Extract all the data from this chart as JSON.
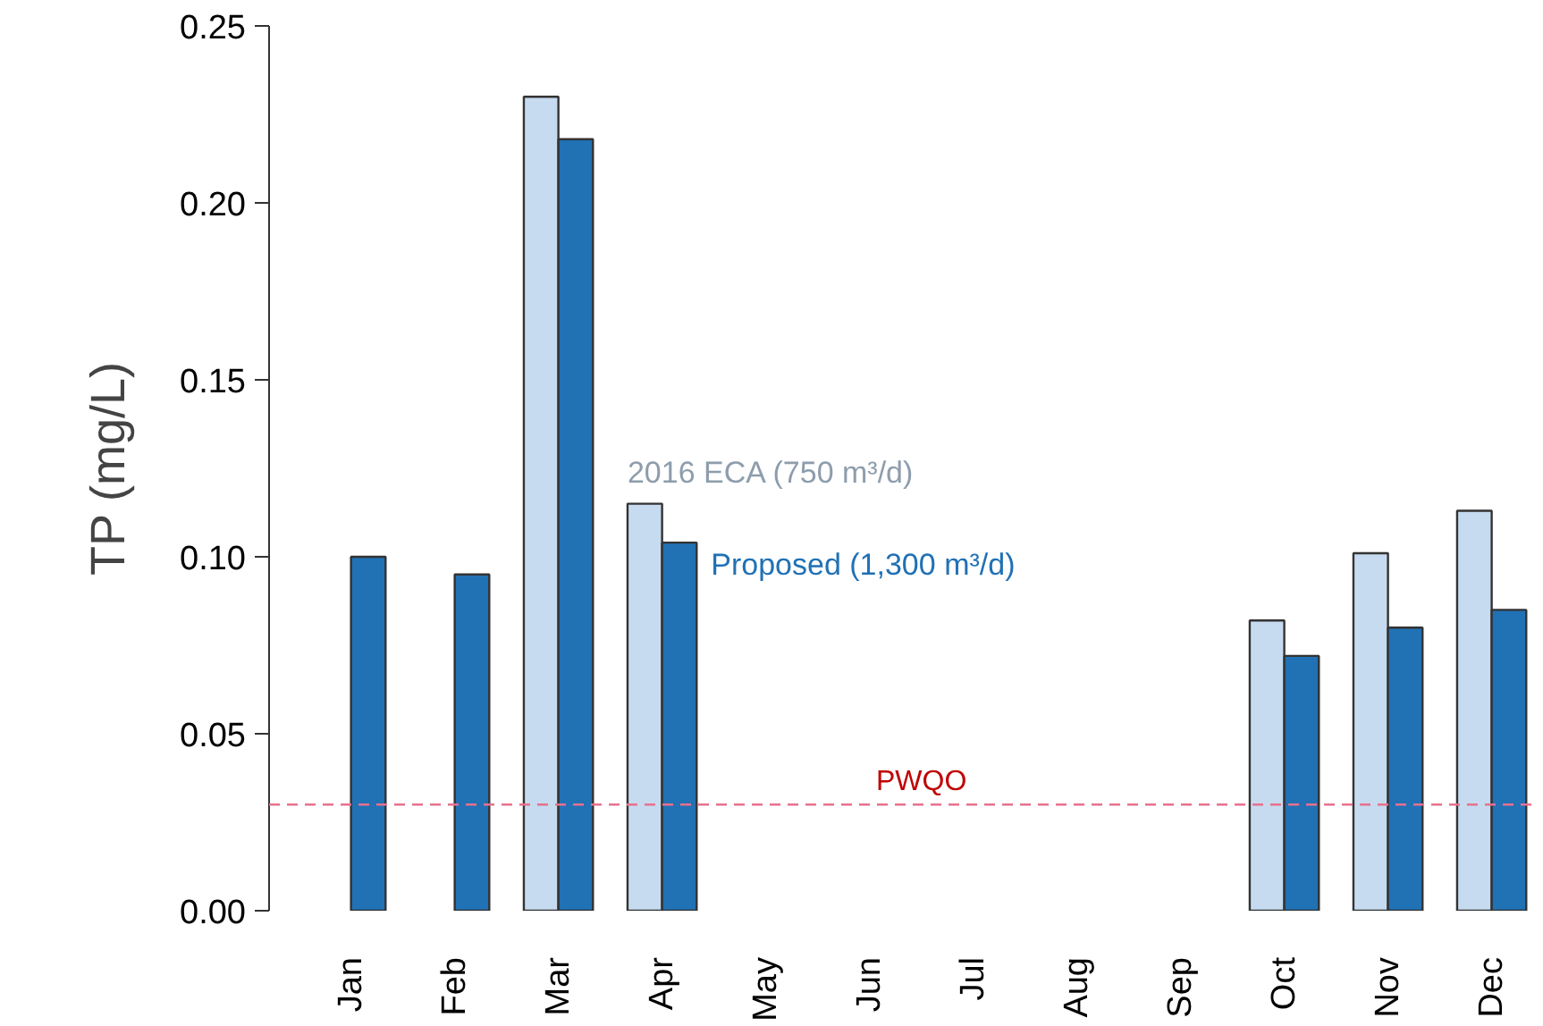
{
  "chart_data": {
    "type": "bar",
    "ylabel": "TP (mg/L)",
    "categories": [
      "Jan",
      "Feb",
      "Mar",
      "Apr",
      "May",
      "Jun",
      "Jul",
      "Aug",
      "Sep",
      "Oct",
      "Nov",
      "Dec"
    ],
    "series": [
      {
        "name": "2016 ECA (750 m³/d)",
        "color": "#c6dbef",
        "values": [
          null,
          null,
          0.23,
          0.115,
          null,
          null,
          null,
          null,
          null,
          0.082,
          0.101,
          0.113
        ]
      },
      {
        "name": "Proposed (1,300 m³/d)",
        "color": "#2171b5",
        "values": [
          0.1,
          0.095,
          0.218,
          0.104,
          null,
          null,
          null,
          null,
          null,
          0.072,
          0.08,
          0.085
        ]
      }
    ],
    "ylim": [
      0,
      0.25
    ],
    "yticks": [
      {
        "value": 0,
        "label": "0.00"
      },
      {
        "value": 0.05,
        "label": "0.05"
      },
      {
        "value": 0.1,
        "label": "0.10"
      },
      {
        "value": 0.15,
        "label": "0.15"
      },
      {
        "value": 0.2,
        "label": "0.20"
      },
      {
        "value": 0.25,
        "label": "0.25"
      }
    ],
    "ref_lines": [
      {
        "axis": "y",
        "value": 0.03,
        "label": "PWQO",
        "color": "#e8718d",
        "line_style": "dashed"
      }
    ],
    "grid": false
  }
}
